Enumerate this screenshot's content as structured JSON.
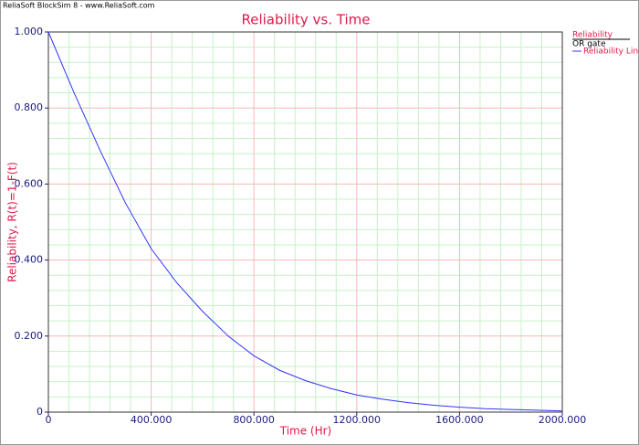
{
  "header": "ReliaSoft BlockSim 8 - www.ReliaSoft.com",
  "chart_data": {
    "type": "line",
    "title": "Reliability vs. Time",
    "x_label": "Time (Hr)",
    "y_label": "Reliability, R(t)=1-F(t)",
    "legend_title": "Reliability",
    "legend_subtitle": "OR gate",
    "legend": "top-right",
    "x": [
      0,
      100,
      200,
      300,
      400,
      500,
      600,
      700,
      800,
      900,
      1000,
      1100,
      1200,
      1300,
      1400,
      1500,
      1600,
      1700,
      1800,
      1900,
      2000
    ],
    "series": [
      {
        "name": "Reliability Line",
        "color": "#3333ff",
        "values": [
          1.0,
          0.84,
          0.69,
          0.55,
          0.43,
          0.34,
          0.265,
          0.2,
          0.148,
          0.11,
          0.083,
          0.062,
          0.045,
          0.034,
          0.025,
          0.018,
          0.013,
          0.009,
          0.007,
          0.005,
          0.003
        ]
      }
    ],
    "xlim": [
      0,
      2000
    ],
    "xticks": [
      0,
      {
        "value": 400,
        "label": "400.000"
      },
      {
        "value": 800,
        "label": "800.000"
      },
      {
        "value": 1200,
        "label": "1200.000"
      },
      {
        "value": 1600,
        "label": "1600.000"
      },
      {
        "value": 2000,
        "label": "2000.000"
      }
    ],
    "ylim": [
      0,
      1
    ],
    "yticks": [
      0,
      {
        "value": 0.2,
        "label": "0.200"
      },
      {
        "value": 0.4,
        "label": "0.400"
      },
      {
        "value": 0.6,
        "label": "0.600"
      },
      {
        "value": 0.8,
        "label": "0.800"
      },
      {
        "value": 1,
        "label": "1.000"
      }
    ],
    "grid": true,
    "minor_grid": 5
  }
}
